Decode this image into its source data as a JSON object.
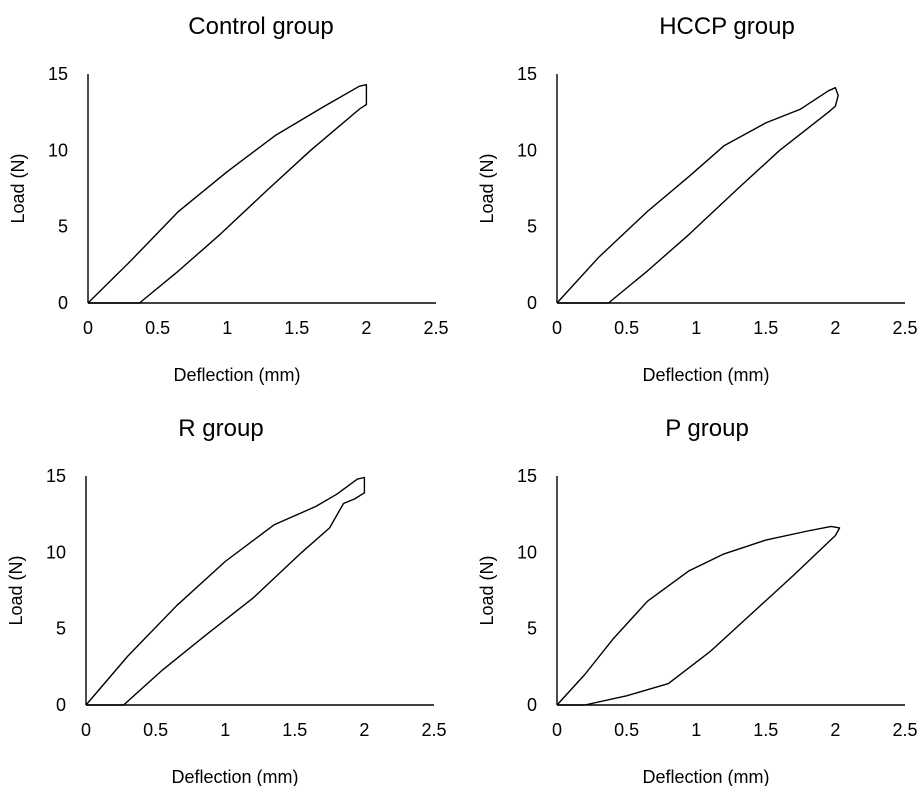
{
  "chart_data": [
    {
      "type": "line",
      "title": "Control group",
      "xlabel": "Deflection (mm)",
      "ylabel": "Load (N)",
      "xlim": [
        0,
        2.5
      ],
      "ylim": [
        0,
        15
      ],
      "xticks": [
        "0",
        "0.5",
        "1",
        "1.5",
        "2",
        "2.5"
      ],
      "yticks": [
        "0",
        "5",
        "10",
        "15"
      ],
      "grid": false,
      "series": [
        {
          "values": [
            [
              0,
              0
            ],
            [
              0.3,
              2.7
            ],
            [
              0.65,
              6.0
            ],
            [
              1.0,
              8.6
            ],
            [
              1.35,
              11.0
            ],
            [
              1.7,
              12.9
            ],
            [
              1.95,
              14.2
            ],
            [
              2.0,
              14.3
            ],
            [
              2.0,
              13.0
            ],
            [
              1.95,
              12.7
            ],
            [
              1.6,
              10.0
            ],
            [
              1.3,
              7.5
            ],
            [
              0.95,
              4.5
            ],
            [
              0.65,
              2.1
            ],
            [
              0.37,
              0
            ],
            [
              0,
              0
            ]
          ]
        }
      ]
    },
    {
      "type": "line",
      "title": "HCCP group",
      "xlabel": "Deflection (mm)",
      "ylabel": "Load (N)",
      "xlim": [
        0,
        2.5
      ],
      "ylim": [
        0,
        15
      ],
      "xticks": [
        "0",
        "0.5",
        "1",
        "1.5",
        "2",
        "2.5"
      ],
      "yticks": [
        "0",
        "5",
        "10",
        "15"
      ],
      "grid": false,
      "series": [
        {
          "values": [
            [
              0,
              0
            ],
            [
              0.3,
              3.0
            ],
            [
              0.65,
              6.0
            ],
            [
              0.95,
              8.3
            ],
            [
              1.2,
              10.3
            ],
            [
              1.5,
              11.8
            ],
            [
              1.75,
              12.7
            ],
            [
              1.95,
              13.9
            ],
            [
              2.0,
              14.1
            ],
            [
              2.02,
              13.6
            ],
            [
              2.0,
              12.9
            ],
            [
              1.95,
              12.5
            ],
            [
              1.6,
              10.0
            ],
            [
              1.3,
              7.5
            ],
            [
              0.95,
              4.5
            ],
            [
              0.65,
              2.1
            ],
            [
              0.37,
              0
            ],
            [
              0,
              0
            ]
          ]
        }
      ]
    },
    {
      "type": "line",
      "title": "R group",
      "xlabel": "Deflection (mm)",
      "ylabel": "Load (N)",
      "xlim": [
        0,
        2.5
      ],
      "ylim": [
        0,
        15
      ],
      "xticks": [
        "0",
        "0.5",
        "1",
        "1.5",
        "2",
        "2.5"
      ],
      "yticks": [
        "0",
        "5",
        "10",
        "15"
      ],
      "grid": false,
      "series": [
        {
          "values": [
            [
              0,
              0
            ],
            [
              0.3,
              3.2
            ],
            [
              0.65,
              6.5
            ],
            [
              1.0,
              9.4
            ],
            [
              1.35,
              11.8
            ],
            [
              1.65,
              13.0
            ],
            [
              1.8,
              13.8
            ],
            [
              1.95,
              14.8
            ],
            [
              2.0,
              14.9
            ],
            [
              2.0,
              13.9
            ],
            [
              1.93,
              13.5
            ],
            [
              1.85,
              13.2
            ],
            [
              1.75,
              11.6
            ],
            [
              1.55,
              10.0
            ],
            [
              1.2,
              7.0
            ],
            [
              0.85,
              4.5
            ],
            [
              0.55,
              2.3
            ],
            [
              0.27,
              0
            ],
            [
              0,
              0
            ]
          ]
        }
      ]
    },
    {
      "type": "line",
      "title": "P group",
      "xlabel": "Deflection (mm)",
      "ylabel": "Load (N)",
      "xlim": [
        0,
        2.5
      ],
      "ylim": [
        0,
        15
      ],
      "xticks": [
        "0",
        "0.5",
        "1",
        "1.5",
        "2",
        "2.5"
      ],
      "yticks": [
        "0",
        "5",
        "10",
        "15"
      ],
      "grid": false,
      "series": [
        {
          "values": [
            [
              0,
              0
            ],
            [
              0.2,
              2.0
            ],
            [
              0.4,
              4.3
            ],
            [
              0.65,
              6.8
            ],
            [
              0.95,
              8.8
            ],
            [
              1.2,
              9.9
            ],
            [
              1.5,
              10.8
            ],
            [
              1.8,
              11.4
            ],
            [
              1.97,
              11.7
            ],
            [
              2.03,
              11.6
            ],
            [
              2.0,
              11.1
            ],
            [
              1.7,
              8.5
            ],
            [
              1.4,
              6.0
            ],
            [
              1.1,
              3.5
            ],
            [
              0.8,
              1.4
            ],
            [
              0.5,
              0.6
            ],
            [
              0.2,
              0
            ],
            [
              0,
              0
            ]
          ]
        }
      ]
    }
  ]
}
